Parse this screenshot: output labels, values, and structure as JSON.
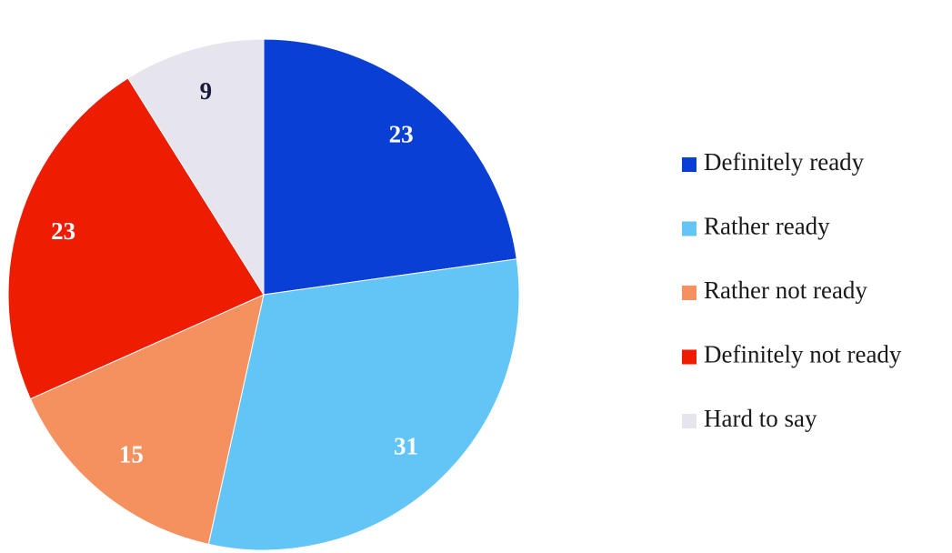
{
  "chart_data": {
    "type": "pie",
    "categories": [
      "Definitely ready",
      "Rather ready",
      "Rather not ready",
      "Definitely not ready",
      "Hard to say"
    ],
    "values": [
      23,
      31,
      15,
      23,
      9
    ],
    "colors": [
      "#0a3fd6",
      "#63c4f6",
      "#f4915e",
      "#ee1c00",
      "#e6e4ec"
    ],
    "label_colors": [
      "#ffffff",
      "#ffffff",
      "#ffffff",
      "#ffffff",
      "#1a1a3a"
    ],
    "legend": "right"
  }
}
